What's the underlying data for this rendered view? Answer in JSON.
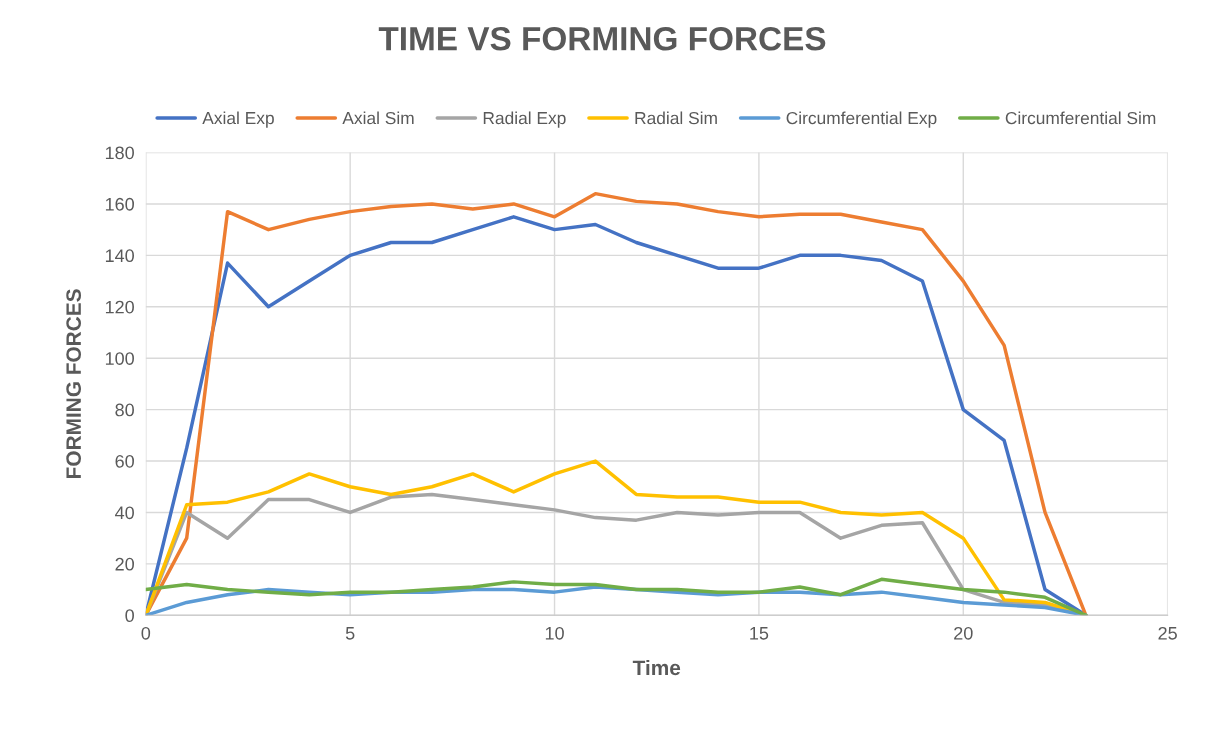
{
  "chart_data": {
    "type": "line",
    "title": "TIME VS FORMING FORCES",
    "xlabel": "Time",
    "ylabel": "FORMING FORCES",
    "x": [
      0,
      1,
      2,
      3,
      4,
      5,
      6,
      7,
      8,
      9,
      10,
      11,
      12,
      13,
      14,
      15,
      16,
      17,
      18,
      19,
      20,
      21,
      22,
      23
    ],
    "series": [
      {
        "name": "Axial Exp",
        "color": "#4472c4",
        "values": [
          0,
          65,
          137,
          120,
          130,
          140,
          145,
          145,
          150,
          155,
          150,
          152,
          145,
          140,
          135,
          135,
          140,
          140,
          138,
          130,
          80,
          68,
          10,
          0
        ]
      },
      {
        "name": "Axial Sim",
        "color": "#ed7d31",
        "values": [
          0,
          30,
          157,
          150,
          154,
          157,
          159,
          160,
          158,
          160,
          155,
          164,
          161,
          160,
          157,
          155,
          156,
          156,
          153,
          150,
          130,
          105,
          40,
          0
        ]
      },
      {
        "name": "Radial Exp",
        "color": "#a5a5a5",
        "values": [
          0,
          40,
          30,
          45,
          45,
          40,
          46,
          47,
          45,
          43,
          41,
          38,
          37,
          40,
          39,
          40,
          40,
          30,
          35,
          36,
          10,
          5,
          4,
          0
        ]
      },
      {
        "name": "Radial Sim",
        "color": "#ffc000",
        "values": [
          0,
          43,
          44,
          48,
          55,
          50,
          47,
          50,
          55,
          48,
          55,
          60,
          47,
          46,
          46,
          44,
          44,
          40,
          39,
          40,
          30,
          6,
          5,
          0
        ]
      },
      {
        "name": "Circumferential Exp",
        "color": "#5b9bd5",
        "values": [
          0,
          5,
          8,
          10,
          9,
          8,
          9,
          9,
          10,
          10,
          9,
          11,
          10,
          9,
          8,
          9,
          9,
          8,
          9,
          7,
          5,
          4,
          3,
          0
        ]
      },
      {
        "name": "Circumferential Sim",
        "color": "#70ad47",
        "values": [
          10,
          12,
          10,
          9,
          8,
          9,
          9,
          10,
          11,
          13,
          12,
          12,
          10,
          10,
          9,
          9,
          11,
          8,
          14,
          12,
          10,
          9,
          7,
          0
        ]
      }
    ],
    "xlim": [
      0,
      25
    ],
    "xticks": [
      0,
      5,
      10,
      15,
      20,
      25
    ],
    "ylim": [
      0,
      180
    ],
    "yticks": [
      0,
      20,
      40,
      60,
      80,
      100,
      120,
      140,
      160,
      180
    ],
    "grid": true,
    "legend": "top",
    "marker": "none",
    "line_style": "solid"
  }
}
